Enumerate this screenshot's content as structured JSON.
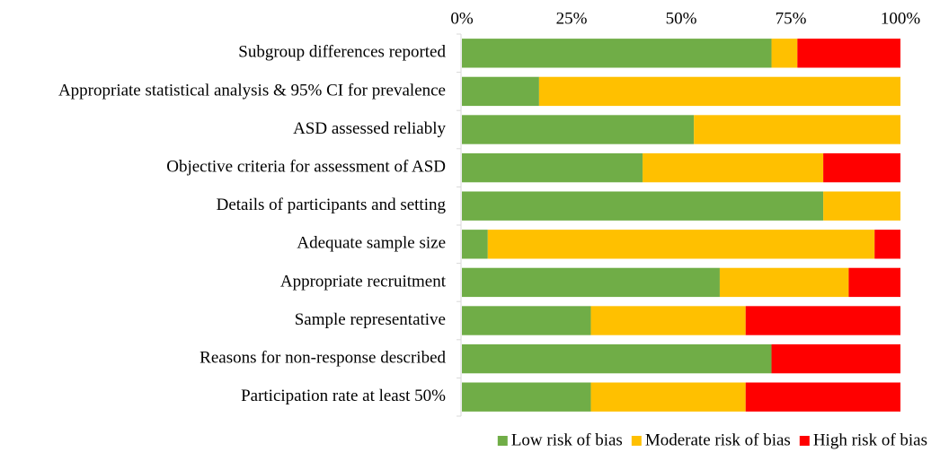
{
  "chart_data": {
    "type": "stacked-bar-horizontal",
    "categories": [
      "Subgroup differences reported",
      "Appropriate statistical analysis & 95% CI for prevalence",
      "ASD assessed reliably",
      "Objective criteria for assessment of ASD",
      "Details of participants and setting",
      "Adequate sample size",
      "Appropriate recruitment",
      "Sample representative",
      "Reasons for non-response described",
      "Participation rate at least 50%"
    ],
    "series": [
      {
        "name": "Low risk of bias",
        "color": "#70ad47",
        "values": [
          70.6,
          17.6,
          52.9,
          41.2,
          82.4,
          5.9,
          58.8,
          29.4,
          70.6,
          29.4
        ]
      },
      {
        "name": "Moderate risk of bias",
        "color": "#ffc000",
        "values": [
          5.9,
          82.4,
          47.1,
          41.2,
          17.6,
          88.2,
          29.4,
          35.3,
          0,
          35.3
        ]
      },
      {
        "name": "High risk of bias",
        "color": "#ff0000",
        "values": [
          23.5,
          0,
          0,
          17.6,
          0,
          5.9,
          11.8,
          35.3,
          29.4,
          35.3
        ]
      }
    ],
    "xlim": [
      0,
      100
    ],
    "xticks": [
      {
        "value": 0,
        "label": "0%"
      },
      {
        "value": 25,
        "label": "25%"
      },
      {
        "value": 50,
        "label": "50%"
      },
      {
        "value": 75,
        "label": "75%"
      },
      {
        "value": 100,
        "label": "100%"
      }
    ],
    "legend": "bottom"
  }
}
